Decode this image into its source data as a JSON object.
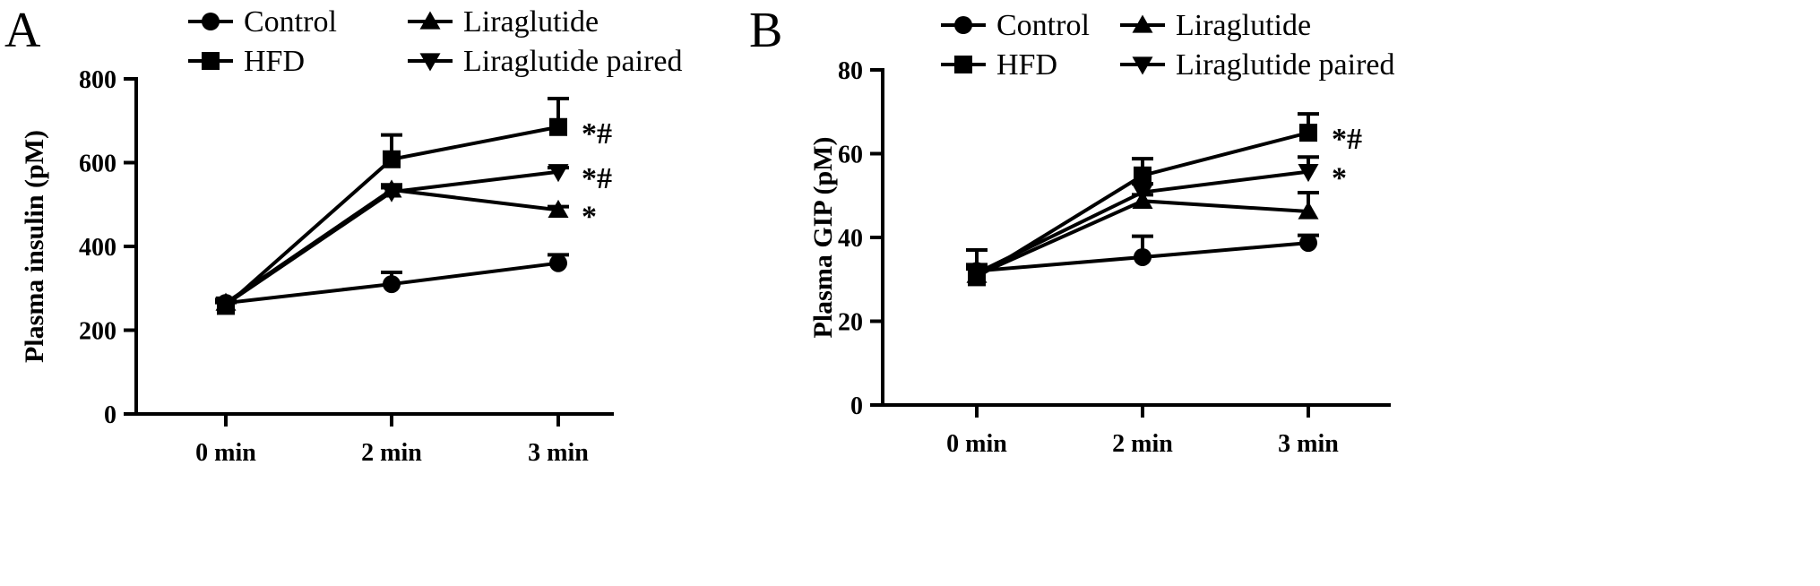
{
  "chart_data": [
    {
      "type": "line",
      "panel_label": "A",
      "categories": [
        "0 min",
        "2 min",
        "3 min"
      ],
      "ylabel": "Plasma insulin (pM)",
      "ylim": [
        0,
        800
      ],
      "yticks": [
        0,
        200,
        400,
        600,
        800
      ],
      "legend_placement": "top",
      "series": [
        {
          "name": "Control",
          "marker": "circle",
          "values": [
            265,
            310,
            360
          ],
          "err": [
            8,
            28,
            20
          ]
        },
        {
          "name": "HFD",
          "marker": "square",
          "values": [
            258,
            608,
            685
          ],
          "err": [
            8,
            58,
            68
          ]
        },
        {
          "name": "Liraglutide",
          "marker": "triangle-up",
          "values": [
            265,
            535,
            487
          ],
          "err": [
            8,
            12,
            8
          ]
        },
        {
          "name": "Liraglutide paired",
          "marker": "triangle-down",
          "values": [
            262,
            530,
            578
          ],
          "err": [
            8,
            10,
            10
          ]
        }
      ],
      "annotations": [
        {
          "category": "3 min",
          "series": "HFD",
          "text": "*#"
        },
        {
          "category": "3 min",
          "series": "Liraglutide paired",
          "text": "*#"
        },
        {
          "category": "3 min",
          "series": "Liraglutide",
          "text": "*"
        }
      ]
    },
    {
      "type": "line",
      "panel_label": "B",
      "categories": [
        "0 min",
        "2 min",
        "3 min"
      ],
      "ylabel": "Plasma GIP (pM)",
      "ylim": [
        0,
        80
      ],
      "yticks": [
        0,
        20,
        40,
        60,
        80
      ],
      "legend_placement": "top",
      "series": [
        {
          "name": "Control",
          "marker": "circle",
          "values": [
            32,
            35.3,
            38.7
          ],
          "err": [
            1.5,
            5.0,
            1.8
          ]
        },
        {
          "name": "HFD",
          "marker": "square",
          "values": [
            30.5,
            54.8,
            65
          ],
          "err": [
            6.5,
            4.0,
            4.5
          ]
        },
        {
          "name": "Liraglutide",
          "marker": "triangle-up",
          "values": [
            31,
            48.7,
            46.2
          ],
          "err": [
            1.5,
            1.5,
            4.5
          ]
        },
        {
          "name": "Liraglutide paired",
          "marker": "triangle-down",
          "values": [
            31.5,
            50.8,
            55.7
          ],
          "err": [
            1.5,
            2.0,
            3.5
          ]
        }
      ],
      "annotations": [
        {
          "category": "3 min",
          "series": "HFD",
          "text": "*#"
        },
        {
          "category": "3 min",
          "series": "Liraglutide paired",
          "text": "*"
        }
      ]
    }
  ]
}
